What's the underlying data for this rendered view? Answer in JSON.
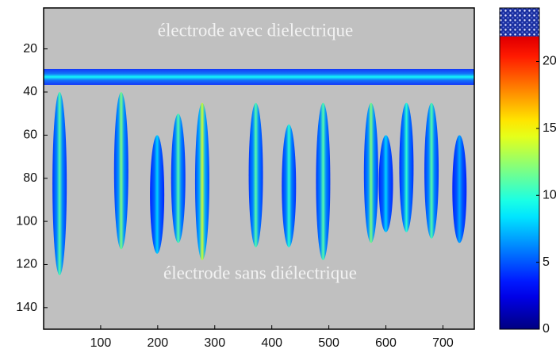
{
  "chart_data": {
    "type": "heatmap",
    "annotations": [
      "électrode avec dielectrique",
      "électrode sans diélectrique"
    ],
    "xlim": [
      0,
      755
    ],
    "xticks": [
      100,
      200,
      300,
      400,
      500,
      600,
      700
    ],
    "ylim": [
      150,
      1
    ],
    "yticks": [
      20,
      40,
      60,
      80,
      100,
      120,
      140
    ],
    "clim": [
      0,
      24
    ],
    "cticks": [
      0,
      5,
      10,
      15,
      20
    ],
    "background": "#c0c0c0",
    "band": {
      "y": 33,
      "peak": 9
    },
    "streaks": {
      "x": [
        28,
        136,
        199,
        236,
        278,
        372,
        430,
        490,
        574,
        600,
        636,
        680,
        729
      ],
      "y_top": [
        40,
        40,
        60,
        50,
        45,
        45,
        55,
        45,
        45,
        60,
        45,
        45,
        60
      ],
      "y_bottom": [
        125,
        113,
        115,
        110,
        118,
        112,
        112,
        118,
        110,
        105,
        105,
        108,
        110
      ],
      "peak": [
        11,
        12,
        8,
        11,
        14,
        11,
        10,
        11,
        12,
        8,
        10,
        11,
        7
      ]
    }
  }
}
